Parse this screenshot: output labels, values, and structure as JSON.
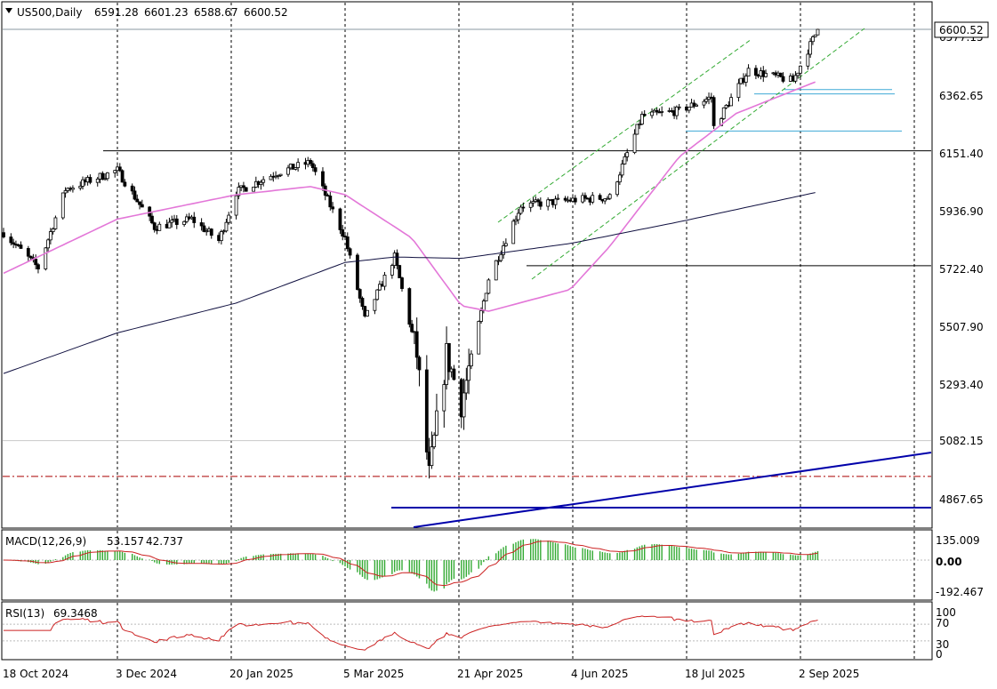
{
  "header": {
    "symbol": "US500,Daily",
    "open": "6591.28",
    "high": "6601.23",
    "low": "6588.67",
    "close": "6600.52"
  },
  "price_axis": {
    "current_price": "6600.52",
    "partly_hidden_label": "6577.15",
    "ticks": [
      "6362.65",
      "6151.40",
      "5936.90",
      "5722.40",
      "5507.90",
      "5293.40",
      "5082.15",
      "4867.65"
    ]
  },
  "macd": {
    "label": "MACD(12,26,9)",
    "main": "53.157",
    "signal": "42.737",
    "ticks": [
      "135.009",
      "0.00",
      "-192.467"
    ]
  },
  "rsi": {
    "label": "RSI(13)",
    "value": "69.3468",
    "ticks": [
      "100",
      "70",
      "30",
      "0"
    ]
  },
  "colors": {
    "ma_fast": "#e377d8",
    "ma_slow": "#101040",
    "trendline": "#0000aa",
    "channel": "#33aa33",
    "hline_cyan": "#3fa9d6",
    "macd_hist": "#33aa33",
    "macd_signal": "#cc2222",
    "rsi": "#cc2222",
    "dashed_red": "#aa0000"
  },
  "chart_data": {
    "type": "candlestick",
    "x_axis_labels": [
      "18 Oct 2024",
      "3 Dec 2024",
      "20 Jan 2025",
      "5 Mar 2025",
      "21 Apr 2025",
      "4 Jun 2025",
      "18 Jul 2025",
      "2 Sep 2025"
    ],
    "ylim": [
      4760,
      6660
    ],
    "horizontal_levels": [
      {
        "price": 6600.52,
        "style": "solid-gray"
      },
      {
        "price": 6378,
        "style": "cyan"
      },
      {
        "price": 6362,
        "style": "cyan"
      },
      {
        "price": 6225,
        "style": "cyan"
      },
      {
        "price": 6152,
        "style": "solid-black"
      },
      {
        "price": 5728,
        "style": "solid-black"
      },
      {
        "price": 4950,
        "style": "dash-dot-red"
      },
      {
        "price": 4835,
        "style": "blue"
      }
    ],
    "series": [
      {
        "name": "price",
        "anchors": [
          [
            "18 Oct 2024",
            5850
          ],
          [
            "2024-11-01",
            5720
          ],
          [
            "2024-11-12",
            6010
          ],
          [
            "3 Dec 2024",
            6080
          ],
          [
            "2024-12-18",
            5870
          ],
          [
            "2025-01-02",
            5900
          ],
          [
            "2025-01-13",
            5820
          ],
          [
            "20 Jan 2025",
            6000
          ],
          [
            "2025-02-05",
            6070
          ],
          [
            "2025-02-19",
            6110
          ],
          [
            "5 Mar 2025",
            5830
          ],
          [
            "2025-03-13",
            5530
          ],
          [
            "2025-03-25",
            5760
          ],
          [
            "2025-04-03",
            5400
          ],
          [
            "2025-04-08",
            4950
          ],
          [
            "2025-04-15",
            5400
          ],
          [
            "21 Apr 2025",
            5220
          ],
          [
            "2025-05-02",
            5680
          ],
          [
            "2025-05-15",
            5950
          ],
          [
            "4 Jun 2025",
            5970
          ],
          [
            "2025-06-20",
            5980
          ],
          [
            "2025-07-03",
            6280
          ],
          [
            "18 Jul 2025",
            6300
          ],
          [
            "2025-07-31",
            6350
          ],
          [
            "2025-08-01",
            6240
          ],
          [
            "2025-08-15",
            6450
          ],
          [
            "2 Sep 2025",
            6410
          ],
          [
            "2025-09-12",
            6600
          ]
        ]
      },
      {
        "name": "ma_fast",
        "anchors": [
          [
            "18 Oct 2024",
            5700
          ],
          [
            "3 Dec 2024",
            5900
          ],
          [
            "20 Jan 2025",
            5990
          ],
          [
            "2025-02-19",
            6020
          ],
          [
            "5 Mar 2025",
            5990
          ],
          [
            "2025-04-01",
            5830
          ],
          [
            "21 Apr 2025",
            5580
          ],
          [
            "2025-05-02",
            5560
          ],
          [
            "4 Jun 2025",
            5640
          ],
          [
            "2025-06-20",
            5800
          ],
          [
            "18 Jul 2025",
            6130
          ],
          [
            "2025-08-10",
            6290
          ],
          [
            "2025-09-12",
            6410
          ]
        ]
      },
      {
        "name": "ma_slow",
        "anchors": [
          [
            "18 Oct 2024",
            5330
          ],
          [
            "3 Dec 2024",
            5480
          ],
          [
            "20 Jan 2025",
            5590
          ],
          [
            "5 Mar 2025",
            5740
          ],
          [
            "2025-03-25",
            5760
          ],
          [
            "21 Apr 2025",
            5755
          ],
          [
            "4 Jun 2025",
            5810
          ],
          [
            "18 Jul 2025",
            5890
          ],
          [
            "2025-09-12",
            6000
          ]
        ]
      }
    ],
    "rsi_range": [
      0,
      100
    ],
    "macd_range": [
      -192.467,
      135.009
    ]
  }
}
